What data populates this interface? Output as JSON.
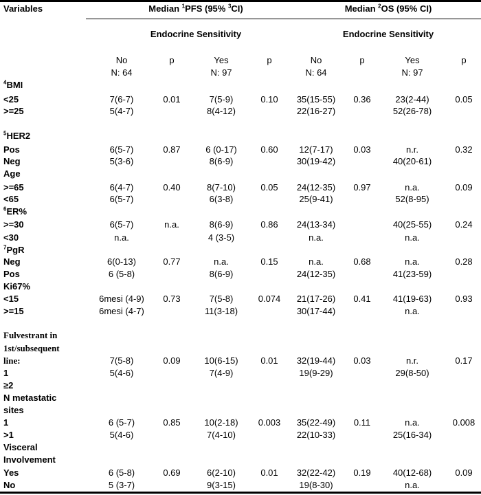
{
  "header": {
    "variables": "Variables",
    "pfs_pre": "Median ",
    "pfs_sup": "1",
    "pfs_mid": "PFS (95% ",
    "pfs_sup2": "3",
    "pfs_post": "CI)",
    "os_pre": "Median ",
    "os_sup": "2",
    "os_post": "OS (95% CI)",
    "endocrine_pfs": "Endocrine Sensitivity",
    "endocrine_os": "Endocrine Sensitivity",
    "cols": [
      "No",
      "p",
      "Yes",
      "p",
      "No",
      "p",
      "Yes",
      "p"
    ],
    "ns": [
      "N: 64",
      "",
      "N: 97",
      "",
      "N: 64",
      "",
      "N: 97",
      ""
    ]
  },
  "rows": [
    {
      "sup": "4",
      "label": "BMI",
      "values": []
    },
    {
      "label": "<25",
      "values": [
        "7(6-7)",
        "0.01",
        "7(5-9)",
        "0.10",
        "35(15-55)",
        "0.36",
        "23(2-44)",
        "0.05"
      ]
    },
    {
      "label": ">=25",
      "values": [
        "5(4-7)",
        "",
        "8(4-12)",
        "",
        "22(16-27)",
        "",
        "52(26-78)",
        ""
      ]
    },
    {
      "sup": "5",
      "label": "HER2",
      "values": []
    },
    {
      "label": "Pos",
      "values": [
        "6(5-7)",
        "0.87",
        "6 (0-17)",
        "0.60",
        "12(7-17)",
        "0.03",
        "n.r.",
        "0.32"
      ]
    },
    {
      "label": "Neg",
      "values": [
        "5(3-6)",
        "",
        "8(6-9)",
        "",
        "30(19-42)",
        "",
        "40(20-61)",
        ""
      ]
    },
    {
      "label": "Age",
      "values": []
    },
    {
      "label": ">=65",
      "values": [
        "6(4-7)",
        "0.40",
        "8(7-10)",
        "0.05",
        "24(12-35)",
        "0.97",
        "n.a.",
        "0.09"
      ]
    },
    {
      "label": "<65",
      "values": [
        "6(5-7)",
        "",
        "6(3-8)",
        "",
        "25(9-41)",
        "",
        "52(8-95)",
        ""
      ]
    },
    {
      "sup": "6",
      "label": "ER%",
      "values": []
    },
    {
      "label": ">=30",
      "values": [
        "6(5-7)",
        "n.a.",
        "8(6-9)",
        "0.86",
        "24(13-34)",
        "",
        "40(25-55)",
        "0.24"
      ]
    },
    {
      "label": "<30",
      "values": [
        "n.a.",
        "",
        "4 (3-5)",
        "",
        "n.a.",
        "",
        "n.a.",
        ""
      ]
    },
    {
      "sup": "7",
      "label": "PgR",
      "values": []
    },
    {
      "label": "Neg",
      "values": [
        "6(0-13)",
        "0.77",
        "n.a.",
        "0.15",
        "n.a.",
        "0.68",
        "n.a.",
        "0.28"
      ]
    },
    {
      "label": "Pos",
      "values": [
        "6 (5-8)",
        "",
        "8(6-9)",
        "",
        "24(12-35)",
        "",
        "41(23-59)",
        ""
      ]
    },
    {
      "label": "Ki67%",
      "values": []
    },
    {
      "label": "<15",
      "values": [
        "6mesi (4-9)",
        "0.73",
        "7(5-8)",
        "0.074",
        "21(17-26)",
        "0.41",
        "41(19-63)",
        "0.93"
      ]
    },
    {
      "label": ">=15",
      "values": [
        "6mesi (4-7)",
        "",
        "11(3-18)",
        "",
        "30(17-44)",
        "",
        "n.a.",
        ""
      ]
    },
    {
      "label": "Fulvestrant in",
      "serif": true,
      "values": []
    },
    {
      "label": "1st/subsequent",
      "serif": true,
      "values": []
    },
    {
      "label": "line:",
      "serif": true,
      "values": [
        "7(5-8)",
        "0.09",
        "10(6-15)",
        "0.01",
        "32(19-44)",
        "0.03",
        "n.r.",
        "0.17"
      ]
    },
    {
      "label": "1",
      "values": [
        "5(4-6)",
        "",
        "7(4-9)",
        "",
        "19(9-29)",
        "",
        "29(8-50)",
        ""
      ]
    },
    {
      "label": "≥2",
      "values": []
    },
    {
      "label": "N metastatic",
      "values": []
    },
    {
      "label": "sites",
      "values": []
    },
    {
      "label": "1",
      "values": [
        "6 (5-7)",
        "0.85",
        "10(2-18)",
        "0.003",
        "35(22-49)",
        "0.11",
        "n.a.",
        "0.008"
      ]
    },
    {
      "label": ">1",
      "values": [
        "5(4-6)",
        "",
        "7(4-10)",
        "",
        "22(10-33)",
        "",
        "25(16-34)",
        ""
      ]
    },
    {
      "label": "Visceral",
      "values": []
    },
    {
      "label": "Involvement",
      "values": []
    },
    {
      "label": "Yes",
      "values": [
        "6 (5-8)",
        "0.69",
        "6(2-10)",
        "0.01",
        "32(22-42)",
        "0.19",
        "40(12-68)",
        "0.09"
      ]
    },
    {
      "label": "No",
      "values": [
        "5 (3-7)",
        "",
        "9(3-15)",
        "",
        "19(8-30)",
        "",
        "n.a.",
        ""
      ]
    }
  ]
}
